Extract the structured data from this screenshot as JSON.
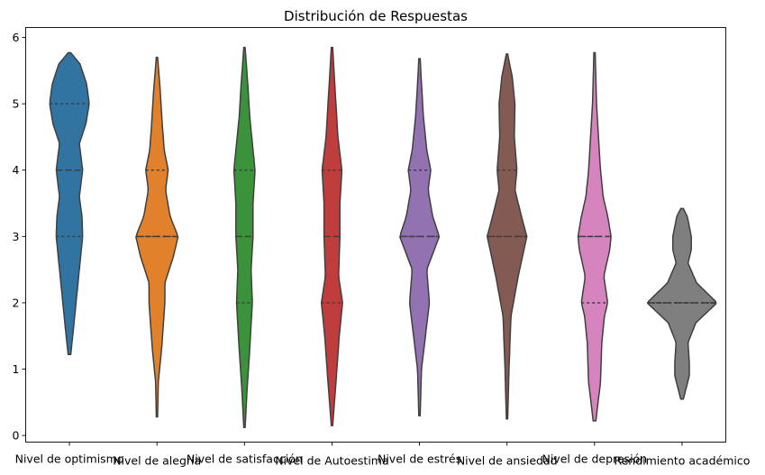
{
  "chart_data": {
    "type": "violin",
    "title": "Distribución de Respuestas",
    "xlabel": "",
    "ylabel": "",
    "ylim": [
      -0.1,
      6.15
    ],
    "yticks": [
      0,
      1,
      2,
      3,
      4,
      5,
      6
    ],
    "grid": false,
    "inner": "quartile",
    "categories": [
      "Nivel de optimismo",
      "Nivel de alegría",
      "Nivel de satisfacción",
      "Nivel de Autoestima",
      "Nivel de estrés",
      "Nivel de ansiedad",
      "Nivel de depresión",
      "Rendimiento académico"
    ],
    "series": [
      {
        "color": "#3274a1",
        "min": 1.22,
        "max": 5.77,
        "quartiles": [
          3,
          4,
          5
        ],
        "density": [
          [
            1.22,
            0.02
          ],
          [
            1.6,
            0.06
          ],
          [
            2.0,
            0.1
          ],
          [
            2.5,
            0.15
          ],
          [
            3.0,
            0.2
          ],
          [
            3.3,
            0.19
          ],
          [
            3.6,
            0.15
          ],
          [
            4.0,
            0.2
          ],
          [
            4.4,
            0.15
          ],
          [
            4.7,
            0.25
          ],
          [
            5.0,
            0.3
          ],
          [
            5.3,
            0.26
          ],
          [
            5.6,
            0.16
          ],
          [
            5.77,
            0.02
          ]
        ]
      },
      {
        "color": "#e1812c",
        "min": 0.28,
        "max": 5.7,
        "quartiles": [
          3,
          3,
          4
        ],
        "density": [
          [
            0.28,
            0.01
          ],
          [
            0.8,
            0.02
          ],
          [
            1.3,
            0.07
          ],
          [
            2.0,
            0.12
          ],
          [
            2.3,
            0.12
          ],
          [
            2.7,
            0.25
          ],
          [
            3.0,
            0.32
          ],
          [
            3.3,
            0.2
          ],
          [
            3.7,
            0.13
          ],
          [
            4.0,
            0.17
          ],
          [
            4.3,
            0.11
          ],
          [
            4.7,
            0.08
          ],
          [
            5.2,
            0.05
          ],
          [
            5.7,
            0.01
          ]
        ]
      },
      {
        "color": "#3a923a",
        "min": 0.12,
        "max": 5.85,
        "quartiles": [
          2,
          3,
          4
        ],
        "density": [
          [
            0.12,
            0.01
          ],
          [
            0.7,
            0.04
          ],
          [
            1.3,
            0.08
          ],
          [
            2.0,
            0.12
          ],
          [
            2.5,
            0.1
          ],
          [
            3.0,
            0.13
          ],
          [
            3.5,
            0.13
          ],
          [
            4.0,
            0.16
          ],
          [
            4.3,
            0.13
          ],
          [
            4.8,
            0.08
          ],
          [
            5.3,
            0.05
          ],
          [
            5.85,
            0.01
          ]
        ]
      },
      {
        "color": "#c03d3e",
        "min": 0.15,
        "max": 5.85,
        "quartiles": [
          2,
          3,
          4
        ],
        "density": [
          [
            0.15,
            0.01
          ],
          [
            0.8,
            0.06
          ],
          [
            1.5,
            0.11
          ],
          [
            2.0,
            0.16
          ],
          [
            2.4,
            0.1
          ],
          [
            3.0,
            0.12
          ],
          [
            3.5,
            0.12
          ],
          [
            4.0,
            0.15
          ],
          [
            4.5,
            0.09
          ],
          [
            5.0,
            0.06
          ],
          [
            5.5,
            0.03
          ],
          [
            5.85,
            0.01
          ]
        ]
      },
      {
        "color": "#9372b2",
        "min": 0.3,
        "max": 5.68,
        "quartiles": [
          3,
          3,
          4
        ],
        "density": [
          [
            0.3,
            0.01
          ],
          [
            1.0,
            0.03
          ],
          [
            1.5,
            0.09
          ],
          [
            2.0,
            0.15
          ],
          [
            2.5,
            0.11
          ],
          [
            3.0,
            0.3
          ],
          [
            3.3,
            0.2
          ],
          [
            3.7,
            0.13
          ],
          [
            4.0,
            0.17
          ],
          [
            4.3,
            0.11
          ],
          [
            4.8,
            0.06
          ],
          [
            5.3,
            0.03
          ],
          [
            5.68,
            0.01
          ]
        ]
      },
      {
        "color": "#845b53",
        "min": 0.25,
        "max": 5.75,
        "quartiles": [
          3,
          3,
          4
        ],
        "density": [
          [
            0.25,
            0.01
          ],
          [
            1.0,
            0.03
          ],
          [
            1.8,
            0.06
          ],
          [
            2.4,
            0.17
          ],
          [
            3.0,
            0.3
          ],
          [
            3.3,
            0.22
          ],
          [
            3.7,
            0.12
          ],
          [
            4.0,
            0.15
          ],
          [
            4.5,
            0.11
          ],
          [
            5.0,
            0.12
          ],
          [
            5.4,
            0.08
          ],
          [
            5.75,
            0.01
          ]
        ]
      },
      {
        "color": "#d684bd",
        "min": 0.22,
        "max": 5.77,
        "quartiles": [
          2,
          3,
          3
        ],
        "density": [
          [
            0.22,
            0.02
          ],
          [
            0.8,
            0.09
          ],
          [
            1.4,
            0.11
          ],
          [
            1.8,
            0.15
          ],
          [
            2.0,
            0.2
          ],
          [
            2.4,
            0.14
          ],
          [
            2.8,
            0.23
          ],
          [
            3.0,
            0.25
          ],
          [
            3.3,
            0.2
          ],
          [
            3.6,
            0.13
          ],
          [
            4.0,
            0.09
          ],
          [
            4.5,
            0.06
          ],
          [
            5.0,
            0.03
          ],
          [
            5.77,
            0.01
          ]
        ]
      },
      {
        "color": "#7f7f7f",
        "min": 0.55,
        "max": 3.42,
        "quartiles": [
          2,
          2,
          2
        ],
        "density": [
          [
            0.55,
            0.02
          ],
          [
            0.9,
            0.11
          ],
          [
            1.1,
            0.11
          ],
          [
            1.4,
            0.09
          ],
          [
            1.7,
            0.21
          ],
          [
            2.0,
            0.53
          ],
          [
            2.3,
            0.22
          ],
          [
            2.6,
            0.09
          ],
          [
            2.8,
            0.14
          ],
          [
            3.0,
            0.14
          ],
          [
            3.3,
            0.08
          ],
          [
            3.42,
            0.02
          ]
        ]
      }
    ]
  }
}
